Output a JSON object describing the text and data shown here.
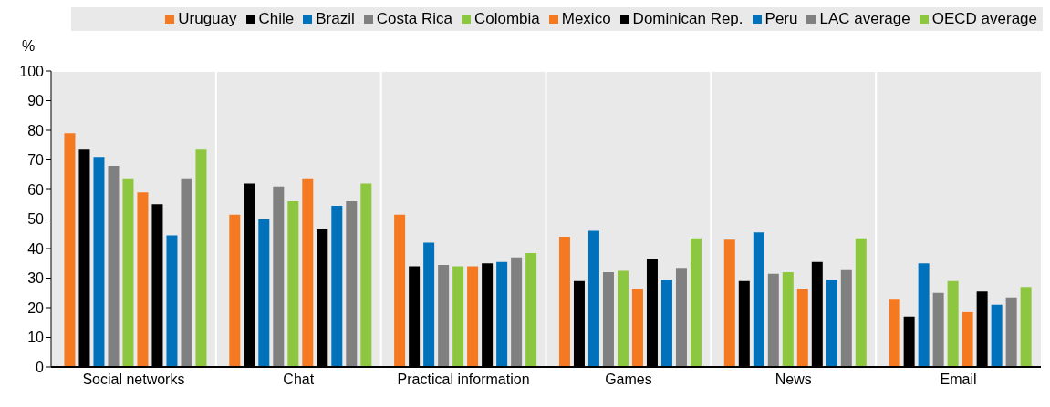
{
  "chart_data": {
    "type": "bar",
    "ylabel": "%",
    "categories": [
      "Social networks",
      "Chat",
      "Practical information",
      "Games",
      "News",
      "Email"
    ],
    "series": [
      {
        "name": "Uruguay",
        "color": "#f47920",
        "values": [
          79,
          51.5,
          51.5,
          44,
          43,
          23
        ]
      },
      {
        "name": "Chile",
        "color": "#000000",
        "values": [
          73.5,
          62,
          34,
          29,
          29,
          17
        ]
      },
      {
        "name": "Brazil",
        "color": "#0072bc",
        "values": [
          71,
          50,
          42,
          46,
          45.5,
          35
        ]
      },
      {
        "name": "Costa Rica",
        "color": "#808080",
        "values": [
          68,
          61,
          34.5,
          32,
          31.5,
          25
        ]
      },
      {
        "name": "Colombia",
        "color": "#8dc63f",
        "values": [
          63.5,
          56,
          34,
          32.5,
          32,
          29
        ]
      },
      {
        "name": "Mexico",
        "color": "#f47920",
        "values": [
          59,
          63.5,
          34,
          26.5,
          26.5,
          18.5
        ]
      },
      {
        "name": "Dominican Rep.",
        "color": "#000000",
        "values": [
          55,
          46.5,
          35,
          36.5,
          35.5,
          25.5
        ]
      },
      {
        "name": "Peru",
        "color": "#0072bc",
        "values": [
          44.5,
          54.5,
          35.5,
          29.5,
          29.5,
          21
        ]
      },
      {
        "name": "LAC average",
        "color": "#808080",
        "values": [
          63.5,
          56,
          37,
          33.5,
          33,
          23.5
        ]
      },
      {
        "name": "OECD average",
        "color": "#8dc63f",
        "values": [
          73.5,
          62,
          38.5,
          43.5,
          43.5,
          27
        ]
      }
    ],
    "ylim": [
      0,
      100
    ],
    "yticks": [
      0,
      10,
      20,
      30,
      40,
      50,
      60,
      70,
      80,
      90,
      100
    ],
    "grid": true,
    "legend": "top"
  }
}
